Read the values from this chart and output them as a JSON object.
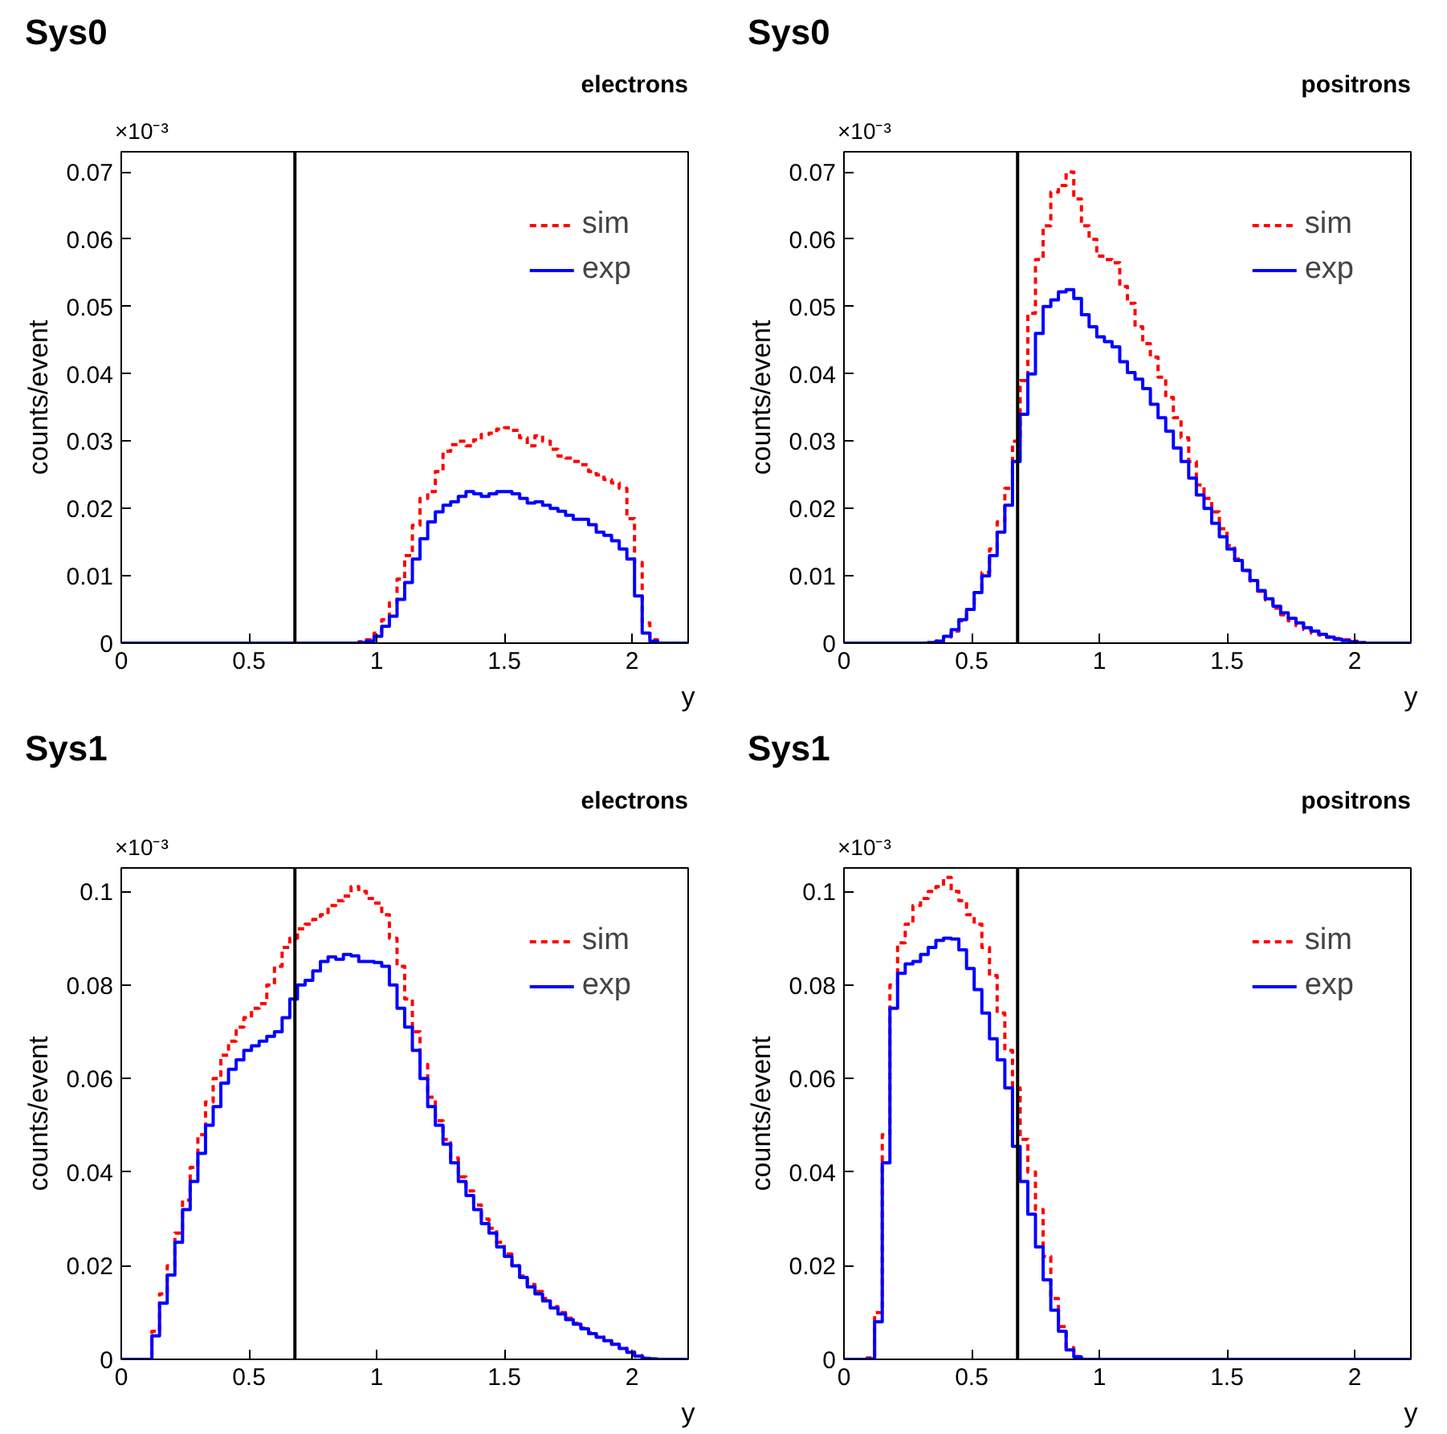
{
  "chart_data": [
    {
      "type": "histogram",
      "title": "Sys0",
      "subtitle": "electrons",
      "xlabel": "y",
      "ylabel": "counts/event",
      "annotations": [
        "×10⁻³"
      ],
      "bins": [
        0,
        0.03,
        0.06,
        0.09,
        0.12,
        0.15,
        0.18,
        0.21,
        0.24,
        0.27,
        0.3,
        0.33,
        0.36,
        0.39,
        0.42,
        0.45,
        0.48,
        0.51,
        0.54,
        0.57,
        0.6,
        0.63,
        0.66,
        0.69,
        0.72,
        0.75,
        0.78,
        0.81,
        0.84,
        0.87,
        0.9,
        0.93,
        0.96,
        0.99,
        1.02,
        1.05,
        1.08,
        1.11,
        1.14,
        1.17,
        1.2,
        1.23,
        1.26,
        1.29,
        1.32,
        1.35,
        1.38,
        1.41,
        1.44,
        1.47,
        1.5,
        1.53,
        1.56,
        1.59,
        1.62,
        1.65,
        1.68,
        1.71,
        1.74,
        1.77,
        1.8,
        1.83,
        1.86,
        1.89,
        1.92,
        1.95,
        1.98,
        2.01,
        2.04,
        2.07,
        2.1,
        2.13,
        2.16,
        2.19,
        2.22
      ],
      "series": [
        {
          "name": "sim",
          "color": "#ff0000",
          "line_style": "dashed",
          "values": [
            0,
            0,
            0,
            0,
            0,
            0,
            0,
            0,
            0,
            0,
            0,
            0,
            0,
            0,
            0,
            0,
            0,
            0,
            0,
            0,
            0,
            0,
            0,
            0,
            0,
            0,
            0,
            0,
            0,
            0,
            0,
            0.0002,
            0.0005,
            0.0015,
            0.0035,
            0.006,
            0.0095,
            0.013,
            0.0175,
            0.0215,
            0.0225,
            0.0255,
            0.0285,
            0.0295,
            0.03,
            0.0293,
            0.0302,
            0.031,
            0.0312,
            0.0318,
            0.032,
            0.0316,
            0.0305,
            0.0293,
            0.0308,
            0.03,
            0.0288,
            0.0278,
            0.0275,
            0.027,
            0.0265,
            0.0255,
            0.025,
            0.0243,
            0.0238,
            0.023,
            0.0185,
            0.012,
            0.003,
            0.0005,
            0,
            0,
            0,
            0
          ]
        },
        {
          "name": "exp",
          "color": "#0000ff",
          "line_style": "solid",
          "values": [
            0,
            0,
            0,
            0,
            0,
            0,
            0,
            0,
            0,
            0,
            0,
            0,
            0,
            0,
            0,
            0,
            0,
            0,
            0,
            0,
            0,
            0,
            0,
            0,
            0,
            0,
            0,
            0,
            0,
            0,
            0,
            0.0001,
            0.0003,
            0.001,
            0.0025,
            0.004,
            0.0065,
            0.009,
            0.0125,
            0.0155,
            0.018,
            0.0195,
            0.0205,
            0.021,
            0.0218,
            0.0225,
            0.0222,
            0.0218,
            0.0222,
            0.0225,
            0.0225,
            0.0222,
            0.0215,
            0.0208,
            0.021,
            0.0205,
            0.02,
            0.0196,
            0.019,
            0.0184,
            0.0184,
            0.0176,
            0.0165,
            0.016,
            0.0152,
            0.014,
            0.0125,
            0.007,
            0.0015,
            0.0003,
            0,
            0,
            0,
            0
          ]
        }
      ],
      "xlim": [
        0,
        2.22
      ],
      "ylim": [
        0,
        0.073
      ],
      "xticks": [
        0,
        0.5,
        1,
        1.5,
        2
      ],
      "yticks": [
        0,
        0.01,
        0.02,
        0.03,
        0.04,
        0.05,
        0.06,
        0.07
      ],
      "ref_lines": [
        {
          "axis": "x",
          "value": 0.68,
          "color": "#000000"
        }
      ],
      "legend": "top right"
    },
    {
      "type": "histogram",
      "title": "Sys0",
      "subtitle": "positrons",
      "xlabel": "y",
      "ylabel": "counts/event",
      "annotations": [
        "×10⁻³"
      ],
      "bins": [
        0,
        0.03,
        0.06,
        0.09,
        0.12,
        0.15,
        0.18,
        0.21,
        0.24,
        0.27,
        0.3,
        0.33,
        0.36,
        0.39,
        0.42,
        0.45,
        0.48,
        0.51,
        0.54,
        0.57,
        0.6,
        0.63,
        0.66,
        0.69,
        0.72,
        0.75,
        0.78,
        0.81,
        0.84,
        0.87,
        0.9,
        0.93,
        0.96,
        0.99,
        1.02,
        1.05,
        1.08,
        1.11,
        1.14,
        1.17,
        1.2,
        1.23,
        1.26,
        1.29,
        1.32,
        1.35,
        1.38,
        1.41,
        1.44,
        1.47,
        1.5,
        1.53,
        1.56,
        1.59,
        1.62,
        1.65,
        1.68,
        1.71,
        1.74,
        1.77,
        1.8,
        1.83,
        1.86,
        1.89,
        1.92,
        1.95,
        1.98,
        2.01,
        2.04,
        2.07,
        2.1,
        2.13,
        2.16,
        2.19,
        2.22
      ],
      "series": [
        {
          "name": "sim",
          "color": "#ff0000",
          "line_style": "dashed",
          "values": [
            0,
            0,
            0,
            0,
            0,
            0,
            0,
            0,
            0,
            0,
            0,
            0.0001,
            0.0003,
            0.0009,
            0.0018,
            0.0033,
            0.005,
            0.0075,
            0.0105,
            0.014,
            0.018,
            0.023,
            0.03,
            0.039,
            0.049,
            0.057,
            0.062,
            0.067,
            0.068,
            0.07,
            0.066,
            0.062,
            0.06,
            0.0575,
            0.057,
            0.0565,
            0.053,
            0.0505,
            0.047,
            0.0445,
            0.0425,
            0.0395,
            0.0365,
            0.0335,
            0.0305,
            0.027,
            0.0235,
            0.0215,
            0.0195,
            0.017,
            0.0145,
            0.0125,
            0.0108,
            0.0092,
            0.0077,
            0.0064,
            0.0052,
            0.0042,
            0.0033,
            0.0026,
            0.002,
            0.0015,
            0.0012,
            0.0009,
            0.0007,
            0.0005,
            0.0003,
            0.0001,
            0,
            0,
            0,
            0,
            0,
            0
          ]
        },
        {
          "name": "exp",
          "color": "#0000ff",
          "line_style": "solid",
          "values": [
            0,
            0,
            0,
            0,
            0,
            0,
            0,
            0,
            0,
            0,
            0,
            0.0001,
            0.0003,
            0.001,
            0.002,
            0.0035,
            0.005,
            0.0075,
            0.01,
            0.013,
            0.0165,
            0.0205,
            0.027,
            0.034,
            0.04,
            0.046,
            0.05,
            0.051,
            0.0522,
            0.0525,
            0.0512,
            0.0488,
            0.047,
            0.0455,
            0.0448,
            0.044,
            0.0418,
            0.0402,
            0.0392,
            0.0378,
            0.0355,
            0.0335,
            0.0315,
            0.029,
            0.027,
            0.0245,
            0.022,
            0.02,
            0.0178,
            0.0158,
            0.014,
            0.0123,
            0.0108,
            0.0093,
            0.0078,
            0.0066,
            0.0055,
            0.0045,
            0.0037,
            0.003,
            0.0023,
            0.0018,
            0.0013,
            0.0009,
            0.0006,
            0.0004,
            0.0002,
            0.0001,
            0,
            0,
            0,
            0,
            0,
            0
          ]
        }
      ],
      "xlim": [
        0,
        2.22
      ],
      "ylim": [
        0,
        0.073
      ],
      "xticks": [
        0,
        0.5,
        1,
        1.5,
        2
      ],
      "yticks": [
        0,
        0.01,
        0.02,
        0.03,
        0.04,
        0.05,
        0.06,
        0.07
      ],
      "ref_lines": [
        {
          "axis": "x",
          "value": 0.68,
          "color": "#000000"
        }
      ],
      "legend": "top right"
    },
    {
      "type": "histogram",
      "title": "Sys1",
      "subtitle": "electrons",
      "xlabel": "y",
      "ylabel": "counts/event",
      "annotations": [
        "×10⁻³"
      ],
      "bins": [
        0,
        0.03,
        0.06,
        0.09,
        0.12,
        0.15,
        0.18,
        0.21,
        0.24,
        0.27,
        0.3,
        0.33,
        0.36,
        0.39,
        0.42,
        0.45,
        0.48,
        0.51,
        0.54,
        0.57,
        0.6,
        0.63,
        0.66,
        0.69,
        0.72,
        0.75,
        0.78,
        0.81,
        0.84,
        0.87,
        0.9,
        0.93,
        0.96,
        0.99,
        1.02,
        1.05,
        1.08,
        1.11,
        1.14,
        1.17,
        1.2,
        1.23,
        1.26,
        1.29,
        1.32,
        1.35,
        1.38,
        1.41,
        1.44,
        1.47,
        1.5,
        1.53,
        1.56,
        1.59,
        1.62,
        1.65,
        1.68,
        1.71,
        1.74,
        1.77,
        1.8,
        1.83,
        1.86,
        1.89,
        1.92,
        1.95,
        1.98,
        2.01,
        2.04,
        2.07,
        2.1,
        2.13,
        2.16,
        2.19,
        2.22
      ],
      "series": [
        {
          "name": "sim",
          "color": "#ff0000",
          "line_style": "dashed",
          "values": [
            0,
            0,
            0,
            0,
            0.006,
            0.014,
            0.02,
            0.027,
            0.034,
            0.041,
            0.048,
            0.055,
            0.06,
            0.065,
            0.068,
            0.071,
            0.073,
            0.075,
            0.076,
            0.08,
            0.084,
            0.088,
            0.09,
            0.092,
            0.093,
            0.094,
            0.095,
            0.097,
            0.098,
            0.099,
            0.101,
            0.1,
            0.0985,
            0.0975,
            0.095,
            0.09,
            0.084,
            0.077,
            0.07,
            0.063,
            0.056,
            0.051,
            0.047,
            0.043,
            0.039,
            0.036,
            0.033,
            0.03,
            0.028,
            0.025,
            0.0225,
            0.02,
            0.0178,
            0.016,
            0.0145,
            0.013,
            0.0113,
            0.01,
            0.0088,
            0.0077,
            0.0067,
            0.0057,
            0.0048,
            0.004,
            0.0032,
            0.0024,
            0.0016,
            0.0008,
            0.0003,
            0.0001,
            0,
            0,
            0,
            0
          ]
        },
        {
          "name": "exp",
          "color": "#0000ff",
          "line_style": "solid",
          "values": [
            0,
            0,
            0,
            0,
            0.005,
            0.012,
            0.018,
            0.025,
            0.032,
            0.038,
            0.044,
            0.05,
            0.054,
            0.059,
            0.062,
            0.064,
            0.066,
            0.067,
            0.068,
            0.069,
            0.07,
            0.073,
            0.077,
            0.08,
            0.081,
            0.083,
            0.085,
            0.086,
            0.0855,
            0.0865,
            0.0862,
            0.085,
            0.085,
            0.0848,
            0.084,
            0.08,
            0.075,
            0.071,
            0.066,
            0.06,
            0.054,
            0.05,
            0.046,
            0.042,
            0.038,
            0.035,
            0.032,
            0.029,
            0.027,
            0.024,
            0.022,
            0.02,
            0.0175,
            0.0155,
            0.014,
            0.0125,
            0.011,
            0.0097,
            0.0085,
            0.0075,
            0.0065,
            0.0055,
            0.0047,
            0.004,
            0.0032,
            0.0023,
            0.0015,
            0.0007,
            0.0002,
            0.0001,
            0,
            0,
            0,
            0
          ]
        }
      ],
      "xlim": [
        0,
        2.22
      ],
      "ylim": [
        0,
        0.105
      ],
      "xticks": [
        0,
        0.5,
        1,
        1.5,
        2
      ],
      "yticks": [
        0,
        0.02,
        0.04,
        0.06,
        0.08,
        0.1
      ],
      "ref_lines": [
        {
          "axis": "x",
          "value": 0.68,
          "color": "#000000"
        }
      ],
      "legend": "top right"
    },
    {
      "type": "histogram",
      "title": "Sys1",
      "subtitle": "positrons",
      "xlabel": "y",
      "ylabel": "counts/event",
      "annotations": [
        "×10⁻³"
      ],
      "bins": [
        0,
        0.03,
        0.06,
        0.09,
        0.12,
        0.15,
        0.18,
        0.21,
        0.24,
        0.27,
        0.3,
        0.33,
        0.36,
        0.39,
        0.42,
        0.45,
        0.48,
        0.51,
        0.54,
        0.57,
        0.6,
        0.63,
        0.66,
        0.69,
        0.72,
        0.75,
        0.78,
        0.81,
        0.84,
        0.87,
        0.9,
        0.93,
        0.96,
        0.99,
        1.02,
        1.05,
        1.08,
        1.11,
        1.14,
        1.17,
        1.2,
        1.23,
        1.26,
        1.29,
        1.32,
        1.35,
        1.38,
        1.41,
        1.44,
        1.47,
        1.5,
        1.53,
        1.56,
        1.59,
        1.62,
        1.65,
        1.68,
        1.71,
        1.74,
        1.77,
        1.8,
        1.83,
        1.86,
        1.89,
        1.92,
        1.95,
        1.98,
        2.01,
        2.04,
        2.07,
        2.1,
        2.13,
        2.16,
        2.19,
        2.22
      ],
      "series": [
        {
          "name": "sim",
          "color": "#ff0000",
          "line_style": "dashed",
          "values": [
            0,
            0,
            0,
            0.0003,
            0.01,
            0.048,
            0.08,
            0.089,
            0.093,
            0.097,
            0.0985,
            0.1,
            0.101,
            0.103,
            0.1,
            0.098,
            0.095,
            0.093,
            0.088,
            0.082,
            0.074,
            0.066,
            0.058,
            0.047,
            0.04,
            0.032,
            0.022,
            0.013,
            0.007,
            0.0025,
            0.0006,
            0,
            0,
            0,
            0,
            0,
            0,
            0,
            0,
            0,
            0,
            0,
            0,
            0,
            0,
            0,
            0,
            0,
            0,
            0,
            0,
            0,
            0,
            0,
            0,
            0,
            0,
            0,
            0,
            0,
            0,
            0,
            0,
            0,
            0,
            0,
            0,
            0,
            0,
            0,
            0,
            0,
            0,
            0
          ]
        },
        {
          "name": "exp",
          "color": "#0000ff",
          "line_style": "solid",
          "values": [
            0,
            0,
            0,
            0.0001,
            0.008,
            0.042,
            0.075,
            0.0825,
            0.0845,
            0.085,
            0.0865,
            0.088,
            0.0895,
            0.09,
            0.0898,
            0.0875,
            0.0835,
            0.079,
            0.074,
            0.0685,
            0.064,
            0.058,
            0.0455,
            0.038,
            0.031,
            0.024,
            0.017,
            0.0105,
            0.006,
            0.002,
            0.0005,
            0,
            0,
            0,
            0,
            0,
            0,
            0,
            0,
            0,
            0,
            0,
            0,
            0,
            0,
            0,
            0,
            0,
            0,
            0,
            0,
            0,
            0,
            0,
            0,
            0,
            0,
            0,
            0,
            0,
            0,
            0,
            0,
            0,
            0,
            0,
            0,
            0,
            0,
            0,
            0,
            0,
            0,
            0
          ]
        }
      ],
      "xlim": [
        0,
        2.22
      ],
      "ylim": [
        0,
        0.105
      ],
      "xticks": [
        0,
        0.5,
        1,
        1.5,
        2
      ],
      "yticks": [
        0,
        0.02,
        0.04,
        0.06,
        0.08,
        0.1
      ],
      "ref_lines": [
        {
          "axis": "x",
          "value": 0.68,
          "color": "#000000"
        }
      ],
      "legend": "top right"
    }
  ]
}
